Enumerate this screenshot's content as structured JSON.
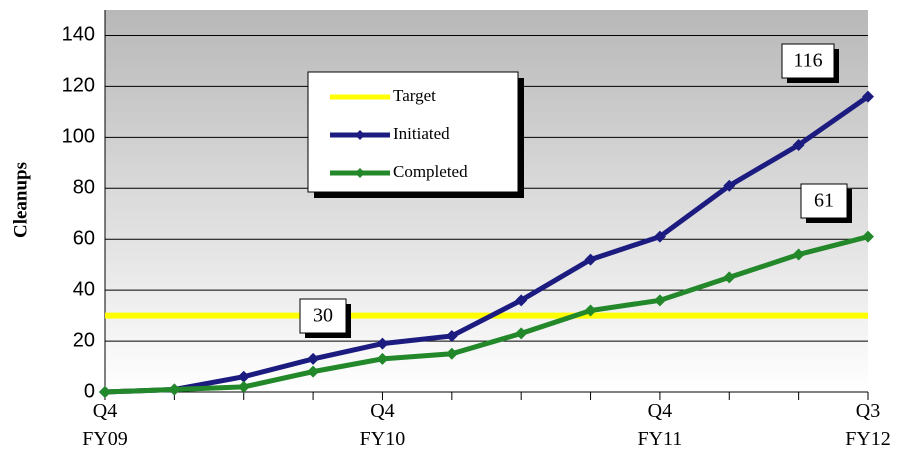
{
  "chart_data": {
    "type": "line",
    "y_label": "Cleanups",
    "categories": [
      "Q4 FY09",
      null,
      null,
      null,
      "Q4 FY10",
      null,
      null,
      null,
      "Q4 FY11",
      null,
      null,
      "Q3 FY12"
    ],
    "series": [
      {
        "name": "Target",
        "color": "#ffff00",
        "values": [
          30,
          30,
          30,
          30,
          30,
          30,
          30,
          30,
          30,
          30,
          30,
          30
        ]
      },
      {
        "name": "Initiated",
        "color": "#1c1c80",
        "values": [
          0,
          1,
          6,
          13,
          19,
          22,
          36,
          52,
          61,
          81,
          97,
          116
        ]
      },
      {
        "name": "Completed",
        "color": "#22882a",
        "values": [
          0,
          1,
          2,
          8,
          13,
          15,
          23,
          32,
          36,
          45,
          54,
          61
        ]
      }
    ],
    "ylim": [
      0,
      150
    ],
    "yticks": [
      0,
      20,
      40,
      60,
      80,
      100,
      120,
      140
    ],
    "grid": true
  }
}
